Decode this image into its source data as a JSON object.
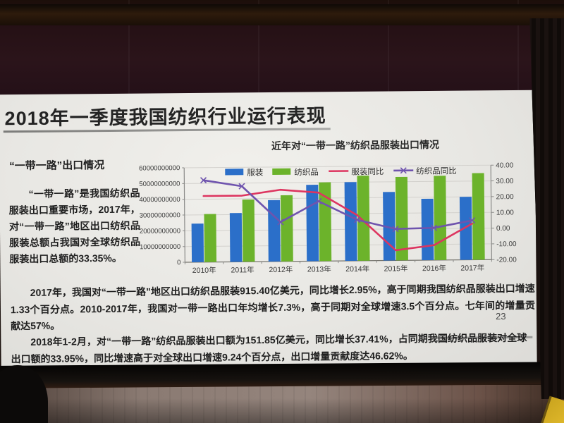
{
  "slide": {
    "title": "2018年一季度我国纺织行业运行表现",
    "page_number": "23",
    "left_panel": {
      "heading": "“一带一路”出口情况",
      "paragraph": "“一带一路”是我国纺织品服装出口重要市场，2017年，对“一带一路”地区出口纺织品服装总额占我国对全球纺织品服装出口总额的33.35%。"
    },
    "paragraphs": [
      "2017年，我国对“一带一路”地区出口纺织品服装915.40亿美元，同比增长2.95%，高于同期我国纺织品服装出口增速1.33个百分点。2010-2017年，我国对一带一路出口年均增长7.3%，高于同期对全球增速3.5个百分点。七年间的增量贡献达57%。",
      "2018年1-2月，对“一带一路”纺织品服装出口额为151.85亿美元，同比增长37.41%，占同期我国纺织品服装对全球出口额的33.95%，同比增速高于对全球出口增速9.24个百分点，出口增量贡献度达46.62%。"
    ]
  },
  "chart_data": {
    "type": "bar+line",
    "title": "近年对“一带一路”纺织品服装出口情况",
    "categories": [
      "2010年",
      "2011年",
      "2012年",
      "2013年",
      "2014年",
      "2015年",
      "2016年",
      "2017年"
    ],
    "series": [
      {
        "name": "服装",
        "type": "bar",
        "axis": "left",
        "color": "#2b6fc9",
        "values": [
          24500000000,
          31000000000,
          39000000000,
          48500000000,
          50000000000,
          43500000000,
          39000000000,
          40000000000
        ]
      },
      {
        "name": "纺织品",
        "type": "bar",
        "axis": "left",
        "color": "#6cb32b",
        "values": [
          30500000000,
          39500000000,
          42000000000,
          50000000000,
          54000000000,
          53000000000,
          53500000000,
          55000000000
        ]
      },
      {
        "name": "服装同比",
        "type": "line",
        "axis": "right",
        "color": "#dd3560",
        "values": [
          22,
          22,
          25.5,
          23.5,
          9,
          -13.5,
          -10.5,
          3
        ]
      },
      {
        "name": "纺织品同比",
        "type": "line",
        "axis": "right",
        "color": "#6f54ae",
        "marker": "x",
        "values": [
          32,
          28,
          5,
          18,
          6,
          0,
          0.5,
          5
        ]
      }
    ],
    "left_axis": {
      "min": 0,
      "max": 60000000000,
      "step": 10000000000,
      "tick_labels": [
        "60000000000",
        "50000000000",
        "40000000000",
        "30000000000",
        "20000000000",
        "10000000000",
        "0"
      ]
    },
    "right_axis": {
      "min": -20,
      "max": 40,
      "step": 10,
      "tick_labels": [
        "40.00",
        "30.00",
        "20.00",
        "10.00",
        "0.00",
        "-10.00",
        "-20.00"
      ]
    },
    "legend_position": "top",
    "grid": true
  }
}
